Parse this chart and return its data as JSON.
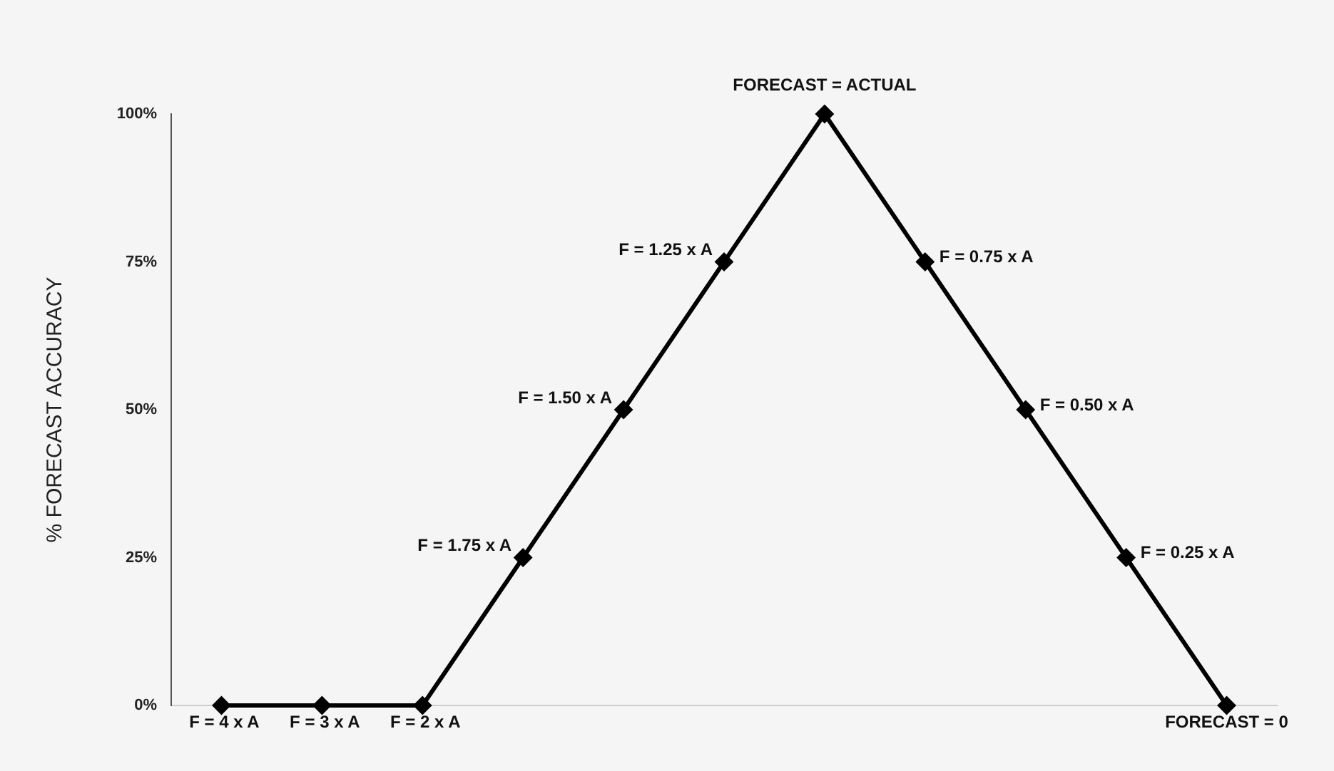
{
  "chart_data": {
    "type": "line",
    "ylabel": "% FORECAST ACCURACY",
    "categories": [
      null,
      null,
      null,
      null,
      null,
      null,
      null,
      null,
      null,
      null,
      null
    ],
    "series": [
      {
        "color": "#000000",
        "values": [
          0,
          0,
          0,
          25,
          50,
          75,
          100,
          75,
          50,
          25,
          0
        ]
      }
    ],
    "ylim": [
      0,
      100
    ],
    "yticks": [
      {
        "value": 0,
        "label": "0%"
      },
      {
        "value": 25,
        "label": "25%"
      },
      {
        "value": 50,
        "label": "50%"
      },
      {
        "value": 75,
        "label": "75%"
      },
      {
        "value": 100,
        "label": "100%"
      }
    ],
    "tick_labels": "y",
    "grid": false,
    "legend": false,
    "marker": "diamond",
    "line_style": "solid",
    "annotations": [
      "F = 4 x A",
      "F = 3 x A",
      "F = 2 x A",
      "F = 1.75 x A",
      "F = 1.50 x A",
      "F = 1.25 x A",
      "FORECAST = ACTUAL",
      "F = 0.75 x A",
      "F = 0.50 x A",
      "F = 0.25 x A",
      "FORECAST = 0"
    ]
  }
}
